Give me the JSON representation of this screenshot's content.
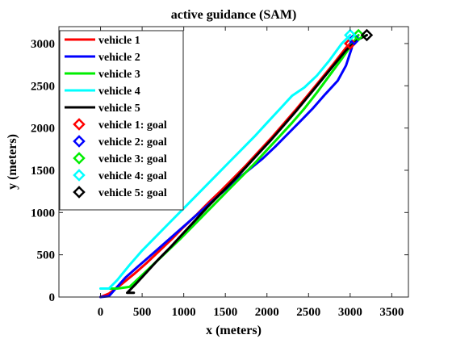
{
  "chart_data": {
    "type": "line",
    "title": "active guidance (SAM)",
    "xlabel": "x (meters)",
    "ylabel": "y (meters)",
    "xlim": [
      -500,
      3700
    ],
    "ylim": [
      0,
      3200
    ],
    "xticks": [
      0,
      500,
      1000,
      1500,
      2000,
      2500,
      3000,
      3500
    ],
    "yticks": [
      0,
      500,
      1000,
      1500,
      2000,
      2500,
      3000
    ],
    "grid": false,
    "legend_position": "top-left",
    "series": [
      {
        "name": "vehicle 1",
        "color": "#ff0000",
        "x": [
          0,
          100,
          250,
          400,
          550,
          700,
          850,
          1000,
          1150,
          1300,
          1450,
          1600,
          1750,
          1900,
          2050,
          2200,
          2350,
          2500,
          2650,
          2800,
          2950,
          3000
        ],
        "y": [
          0,
          40,
          150,
          270,
          400,
          540,
          680,
          830,
          970,
          1120,
          1260,
          1410,
          1560,
          1720,
          1880,
          2050,
          2220,
          2400,
          2580,
          2760,
          2950,
          3000
        ]
      },
      {
        "name": "vehicle 2",
        "color": "#0000ff",
        "x": [
          0,
          100,
          200,
          300,
          450,
          600,
          750,
          900,
          1050,
          1200,
          1350,
          1500,
          1650,
          1800,
          1950,
          2100,
          2250,
          2400,
          2550,
          2700,
          2850,
          2950,
          3020,
          3000
        ],
        "y": [
          0,
          10,
          120,
          230,
          360,
          490,
          620,
          750,
          880,
          1010,
          1140,
          1270,
          1400,
          1520,
          1640,
          1780,
          1930,
          2080,
          2230,
          2400,
          2560,
          2740,
          2950,
          3050
        ]
      },
      {
        "name": "vehicle 3",
        "color": "#00ee00",
        "x": [
          100,
          200,
          350,
          500,
          650,
          800,
          950,
          1100,
          1250,
          1400,
          1550,
          1700,
          1850,
          2000,
          2150,
          2300,
          2450,
          2600,
          2750,
          2900,
          3050,
          3100
        ],
        "y": [
          100,
          100,
          120,
          260,
          400,
          540,
          680,
          830,
          980,
          1130,
          1280,
          1430,
          1580,
          1740,
          1900,
          2060,
          2230,
          2420,
          2620,
          2820,
          3030,
          3100
        ]
      },
      {
        "name": "vehicle 4",
        "color": "#00ffff",
        "x": [
          0,
          100,
          200,
          350,
          500,
          650,
          800,
          950,
          1100,
          1250,
          1400,
          1550,
          1700,
          1850,
          2000,
          2150,
          2300,
          2450,
          2600,
          2750,
          2900,
          3000
        ],
        "y": [
          100,
          100,
          200,
          380,
          550,
          700,
          850,
          1000,
          1150,
          1300,
          1450,
          1600,
          1750,
          1900,
          2060,
          2220,
          2380,
          2480,
          2620,
          2800,
          3000,
          3100
        ]
      },
      {
        "name": "vehicle 5",
        "color": "#000000",
        "x": [
          400,
          320,
          420,
          560,
          700,
          850,
          1000,
          1150,
          1300,
          1450,
          1600,
          1750,
          1900,
          2050,
          2200,
          2350,
          2500,
          2650,
          2800,
          2950,
          3100,
          3200
        ],
        "y": [
          50,
          50,
          150,
          300,
          450,
          600,
          760,
          920,
          1080,
          1230,
          1380,
          1540,
          1700,
          1860,
          2030,
          2200,
          2380,
          2560,
          2740,
          2920,
          3050,
          3100
        ]
      }
    ],
    "goals": [
      {
        "name": "vehicle 1: goal",
        "color": "#ff0000",
        "x": 3000,
        "y": 3000
      },
      {
        "name": "vehicle 2: goal",
        "color": "#0000ff",
        "x": 3050,
        "y": 3050
      },
      {
        "name": "vehicle 3: goal",
        "color": "#00ee00",
        "x": 3100,
        "y": 3100
      },
      {
        "name": "vehicle 4: goal",
        "color": "#00ffff",
        "x": 3000,
        "y": 3100
      },
      {
        "name": "vehicle 5: goal",
        "color": "#000000",
        "x": 3200,
        "y": 3100
      }
    ]
  }
}
